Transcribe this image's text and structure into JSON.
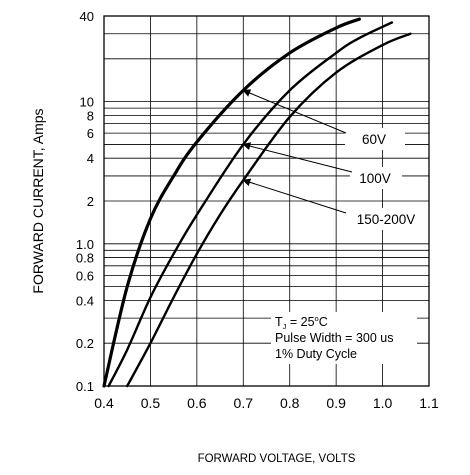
{
  "chart_data": {
    "type": "line",
    "title": "",
    "xlabel": "FORWARD VOLTAGE, VOLTS",
    "ylabel": "FORWARD CURRENT, Amps",
    "xlim": [
      0.4,
      1.1
    ],
    "ylim": [
      0.1,
      40
    ],
    "yscale": "log",
    "xticks": [
      0.4,
      0.5,
      0.6,
      0.7,
      0.8,
      0.9,
      1.0,
      1.1
    ],
    "xtick_labels": [
      "0.4",
      "0.5",
      "0.6",
      "0.7",
      "0.8",
      "0.9",
      "1.0",
      "1.1"
    ],
    "yticks": [
      0.1,
      0.2,
      0.4,
      0.6,
      0.8,
      1.0,
      2,
      4,
      6,
      8,
      10,
      40
    ],
    "ytick_labels": [
      "0.1",
      "0.2",
      "0.4",
      "0.6",
      "0.8",
      "1.0",
      "2",
      "4",
      "6",
      "8",
      "10",
      "40"
    ],
    "grid": true,
    "series": [
      {
        "name": "60V",
        "stroke": "#000000",
        "x": [
          0.4,
          0.45,
          0.5,
          0.55,
          0.6,
          0.7,
          0.8,
          0.9,
          0.95
        ],
        "y": [
          0.1,
          0.5,
          1.5,
          3.0,
          5.2,
          12,
          22,
          33,
          38
        ]
      },
      {
        "name": "100V",
        "stroke": "#000000",
        "x": [
          0.41,
          0.45,
          0.5,
          0.55,
          0.6,
          0.7,
          0.8,
          0.9,
          0.95,
          1.02
        ],
        "y": [
          0.1,
          0.18,
          0.42,
          0.85,
          1.6,
          5.0,
          12,
          22,
          28,
          36
        ]
      },
      {
        "name": "150-200V",
        "stroke": "#000000",
        "x": [
          0.45,
          0.5,
          0.55,
          0.6,
          0.65,
          0.7,
          0.8,
          0.9,
          1.0,
          1.06
        ],
        "y": [
          0.1,
          0.2,
          0.42,
          0.85,
          1.6,
          2.8,
          7.8,
          16,
          25,
          30
        ]
      }
    ],
    "annotation_lines": [
      "Tⁱ = 25°C",
      "Pulse Width = 300 us",
      "1% Duty Cycle"
    ],
    "annotation": {
      "tj_symbol": "T",
      "tj_subscript": "J",
      "tj_value": " = 25",
      "tj_degree": "o",
      "tj_unit": "C",
      "line2": "Pulse Width = 300 us",
      "line3": "1% Duty Cycle"
    }
  }
}
